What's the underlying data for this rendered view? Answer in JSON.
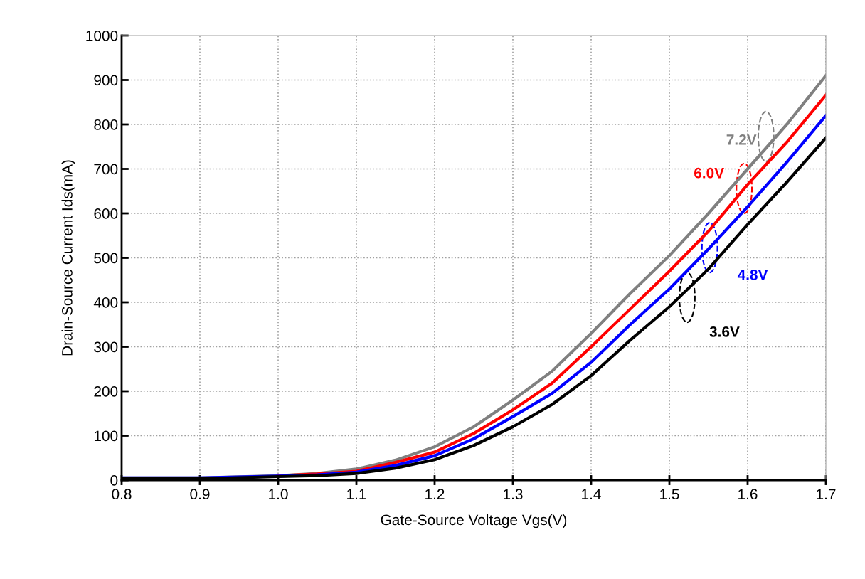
{
  "chart_data": {
    "type": "line",
    "xlabel": "Gate-Source Voltage Vgs(V)",
    "ylabel": "Drain-Source Current Ids(mA)",
    "x": [
      0.8,
      0.9,
      1.0,
      1.05,
      1.1,
      1.15,
      1.2,
      1.25,
      1.3,
      1.35,
      1.4,
      1.45,
      1.5,
      1.55,
      1.6,
      1.65,
      1.7
    ],
    "series": [
      {
        "color": "#808080",
        "values": [
          5,
          5,
          10,
          15,
          25,
          45,
          75,
          120,
          180,
          245,
          330,
          420,
          505,
          600,
          700,
          800,
          910
        ]
      },
      {
        "color": "#ff0000",
        "values": [
          null,
          null,
          10,
          14,
          20,
          40,
          63,
          105,
          158,
          218,
          300,
          385,
          470,
          560,
          665,
          760,
          866
        ]
      },
      {
        "color": "#0000ff",
        "values": [
          5,
          5,
          9,
          12,
          18,
          33,
          55,
          93,
          143,
          195,
          265,
          350,
          430,
          520,
          615,
          715,
          820
        ]
      },
      {
        "color": "#000000",
        "values": [
          3,
          3,
          8,
          10,
          15,
          27,
          46,
          78,
          120,
          170,
          235,
          315,
          390,
          475,
          575,
          670,
          770
        ]
      }
    ],
    "annotations": [
      "7.2V",
      "6.0V",
      "4.8V",
      "3.6V"
    ],
    "xlim": [
      0.8,
      1.7
    ],
    "xticks": [
      {
        "value": 0.8,
        "label": "0.8"
      },
      {
        "value": 0.9,
        "label": "0.9"
      },
      {
        "value": 1.0,
        "label": "1.0"
      },
      {
        "value": 1.1,
        "label": "1.1"
      },
      {
        "value": 1.2,
        "label": "1.2"
      },
      {
        "value": 1.3,
        "label": "1.3"
      },
      {
        "value": 1.4,
        "label": "1.4"
      },
      {
        "value": 1.5,
        "label": "1.5"
      },
      {
        "value": 1.6,
        "label": "1.6"
      },
      {
        "value": 1.7,
        "label": "1.7"
      }
    ],
    "ylim": [
      0,
      1000
    ],
    "yticks": [
      0,
      100,
      200,
      300,
      400,
      500,
      600,
      700,
      800,
      900,
      1000
    ],
    "grid": true,
    "marker": "none",
    "line_style": "solid"
  }
}
